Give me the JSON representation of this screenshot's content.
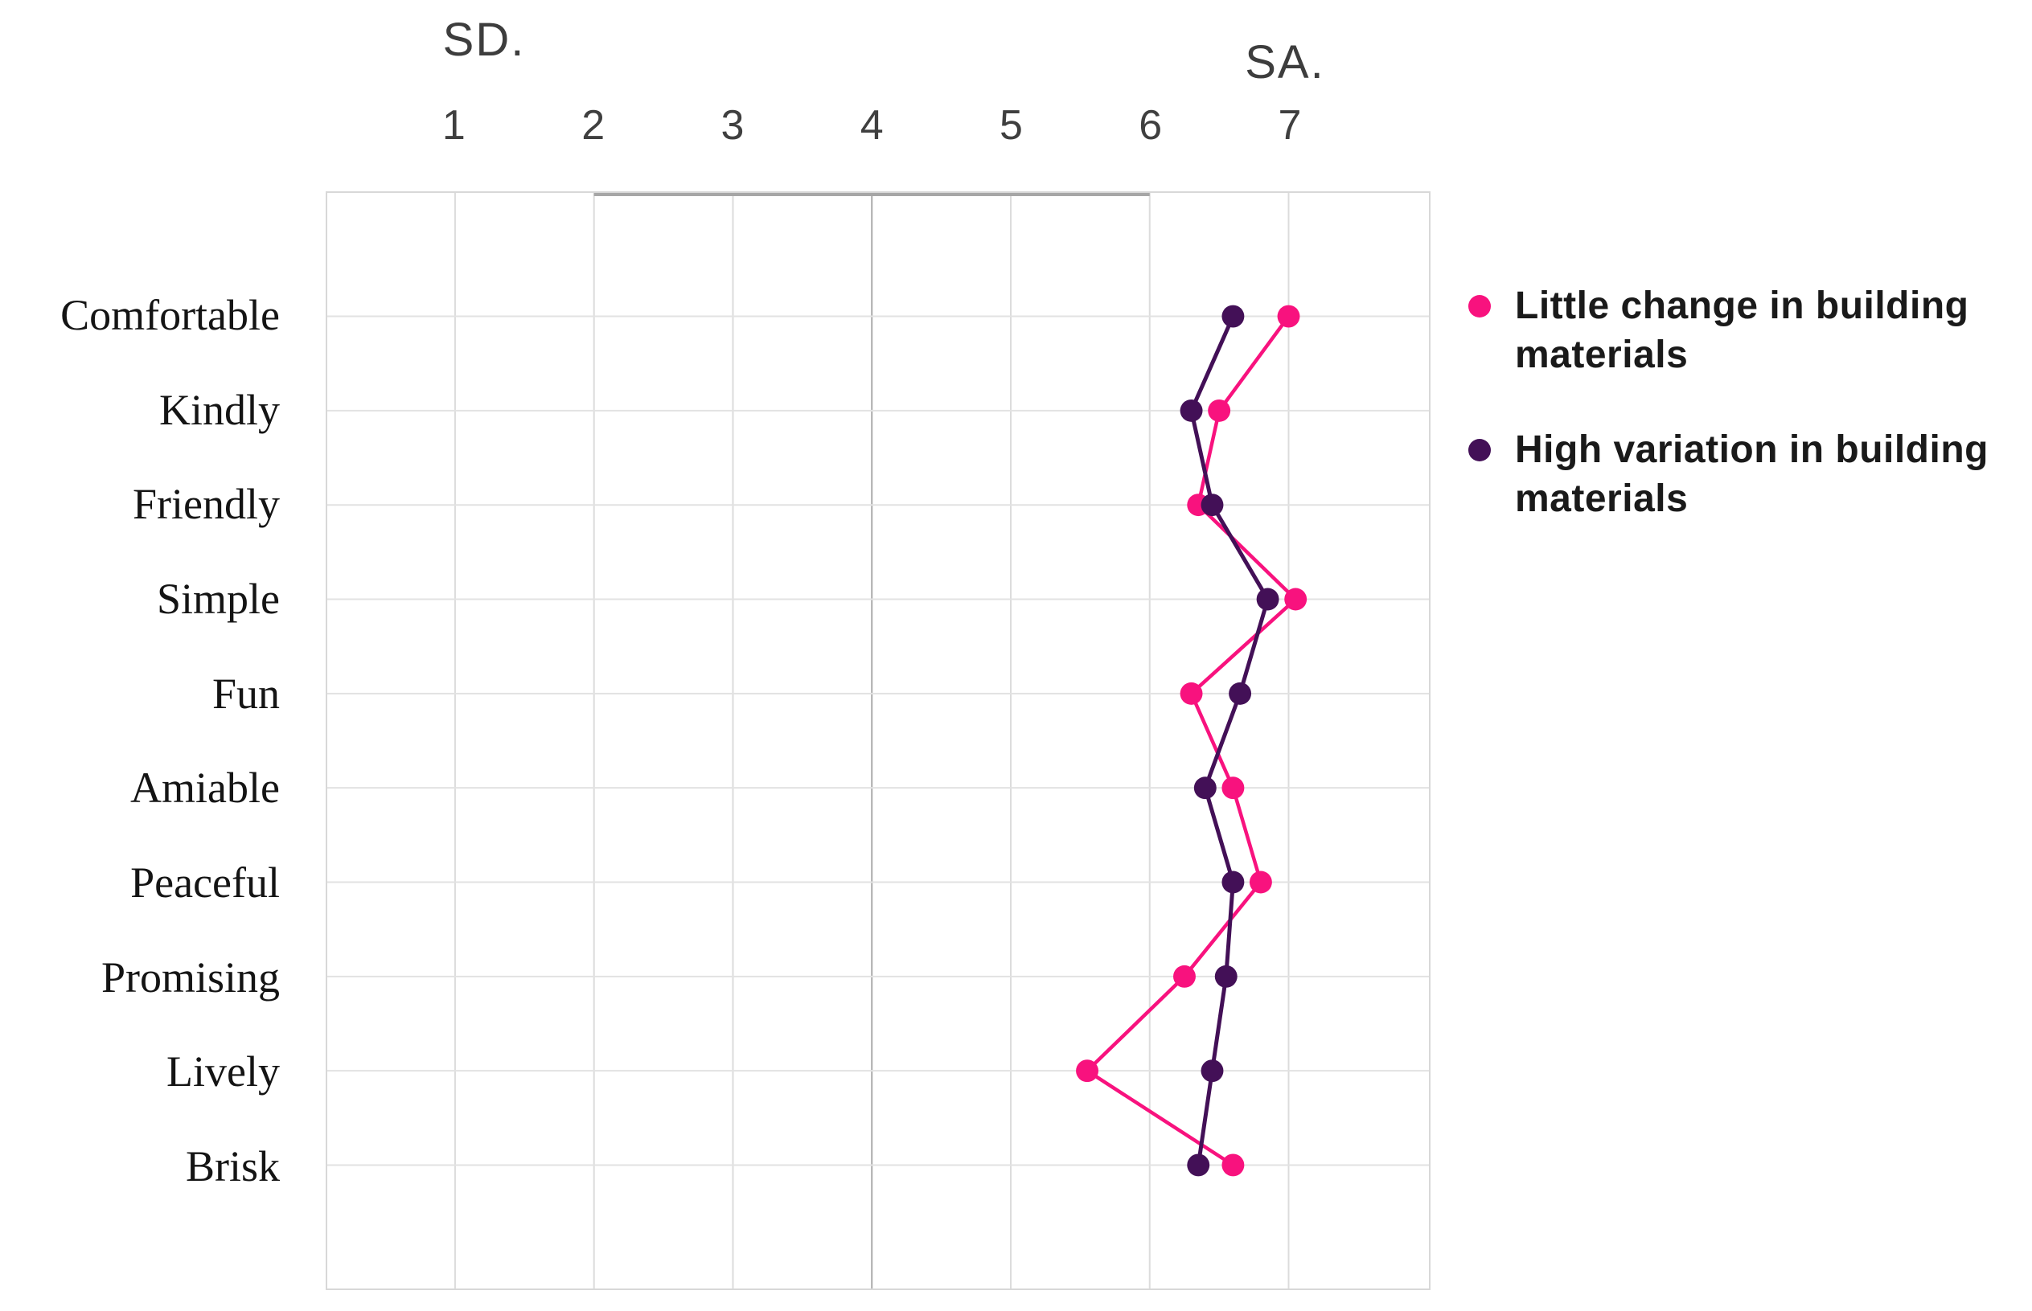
{
  "chart_data": {
    "type": "line",
    "title": "",
    "orientation": "categories-on-y-axis",
    "scale_anchors": {
      "left": "SD.",
      "right": "SA."
    },
    "x_ticks": [
      "1",
      "2",
      "3",
      "4",
      "5",
      "6",
      "7"
    ],
    "x_range": [
      0.08,
      8.01
    ],
    "categories": [
      "Comfortable",
      "Kindly",
      "Friendly",
      "Simple",
      "Fun",
      "Amiable",
      "Peaceful",
      "Promising",
      "Lively",
      "Brisk"
    ],
    "series": [
      {
        "name": "Little change in building materials",
        "color": "#f8127e",
        "values": [
          7.0,
          6.5,
          6.35,
          7.05,
          6.3,
          6.6,
          6.8,
          6.25,
          5.55,
          6.6
        ]
      },
      {
        "name": "High variation in building materials",
        "color": "#431057",
        "values": [
          6.6,
          6.3,
          6.45,
          6.85,
          6.65,
          6.4,
          6.6,
          6.55,
          6.45,
          6.35
        ]
      }
    ],
    "grid": {
      "vertical_at_ticks": true,
      "horizontal_at_categories": true,
      "emphasized_vertical_tick": "4"
    },
    "legend_position": "right",
    "colors": {
      "background": "#ffffff",
      "plot_border": "#d8d8d8",
      "grid_vertical": "#dcdcdc",
      "grid_vertical_emphasis": "#ababab",
      "grid_horizontal": "#e2e2e2",
      "top_border_emphasis": "#a6a6a6",
      "tick_text": "#3f3f3f",
      "category_text": "#141414",
      "legend_text": "#1a1a1a"
    }
  }
}
